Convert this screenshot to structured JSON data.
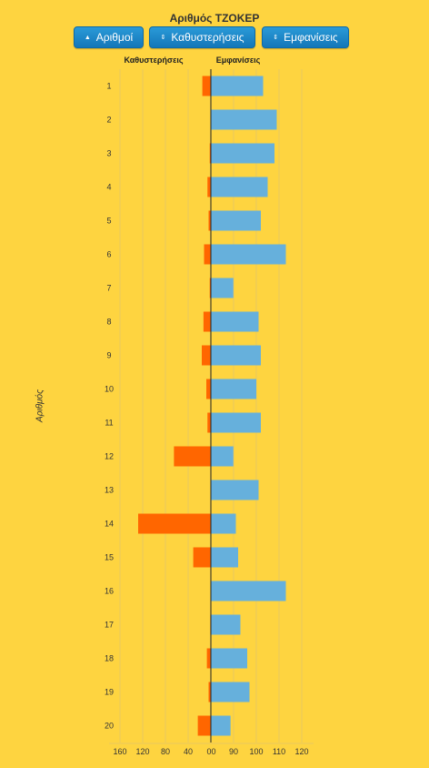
{
  "chart_data": {
    "type": "bar",
    "title": "Αριθμός ΤΖΟΚΕΡ",
    "ylabel": "Αριθμός",
    "left_series_label": "Καθυστερήσεις",
    "right_series_label": "Εμφανίσεις",
    "categories": [
      "1",
      "2",
      "3",
      "4",
      "5",
      "6",
      "7",
      "8",
      "9",
      "10",
      "11",
      "12",
      "13",
      "14",
      "15",
      "16",
      "17",
      "18",
      "19",
      "20"
    ],
    "series": [
      {
        "name": "Καθυστερήσεις",
        "color": "#ff6600",
        "values": [
          15,
          0,
          2,
          6,
          4,
          12,
          2,
          13,
          16,
          8,
          6,
          65,
          0,
          128,
          31,
          0,
          1,
          7,
          4,
          23
        ]
      },
      {
        "name": "Εμφανίσεις",
        "color": "#66b0dc",
        "values": [
          103,
          109,
          108,
          105,
          102,
          113,
          89,
          101,
          102,
          100,
          102,
          89,
          101,
          91,
          92,
          113,
          93,
          96,
          97,
          78
        ]
      }
    ],
    "left_ticks": [
      "160",
      "120",
      "80",
      "40",
      "0"
    ],
    "right_ticks": [
      "0",
      "90",
      "100",
      "110",
      "120"
    ],
    "left_max": 160,
    "right_scale": [
      [
        0,
        0
      ],
      [
        90,
        25
      ],
      [
        100,
        50
      ],
      [
        110,
        75
      ],
      [
        120,
        100
      ]
    ],
    "grid": true
  },
  "buttons": [
    {
      "label": "Αριθμοί",
      "icon": "▲"
    },
    {
      "label": "Καθυστερήσεις",
      "icon": "⇕"
    },
    {
      "label": "Εμφανίσεις",
      "icon": "⇕"
    }
  ]
}
